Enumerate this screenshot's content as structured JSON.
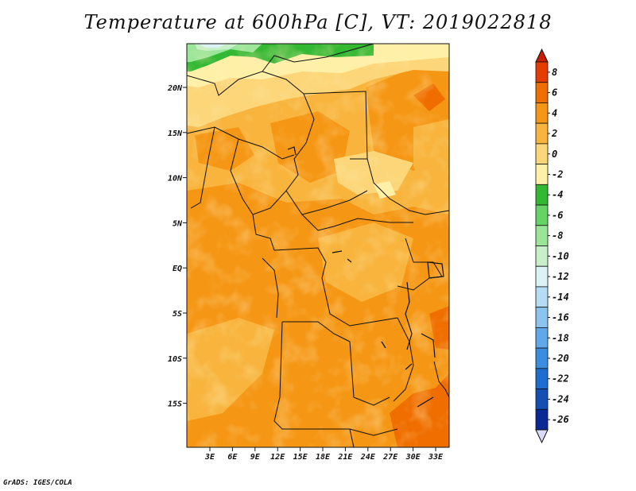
{
  "title": "Temperature at 600hPa [C], VT: 2019022818",
  "credit": "GrADS: IGES/COLA",
  "lon_labels": [
    "3E",
    "6E",
    "9E",
    "12E",
    "15E",
    "18E",
    "21E",
    "24E",
    "27E",
    "30E",
    "33E"
  ],
  "lat_labels": [
    "20N",
    "15N",
    "10N",
    "5N",
    "EQ",
    "5S",
    "10S",
    "15S"
  ],
  "colorbar": {
    "labels": [
      "8",
      "6",
      "4",
      "2",
      "0",
      "-2",
      "-4",
      "-6",
      "-8",
      "-10",
      "-12",
      "-14",
      "-16",
      "-18",
      "-20",
      "-22",
      "-24",
      "-26"
    ],
    "colors": [
      "#c81e00",
      "#e63c00",
      "#f06e00",
      "#f59614",
      "#f8b43c",
      "#fcd678",
      "#fff0a8",
      "#33b833",
      "#66d366",
      "#99e699",
      "#c8f0c8",
      "#dcf2f5",
      "#b4dcf5",
      "#8cc4f0",
      "#5fa8ea",
      "#3c8ce0",
      "#1e6ed2",
      "#1450b4",
      "#0a2896",
      "#000a64"
    ],
    "tip_low_color": "#d8dcf8"
  }
}
